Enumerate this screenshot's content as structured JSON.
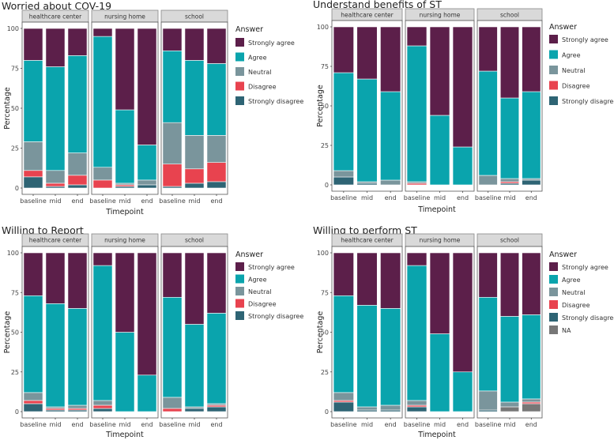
{
  "colors": {
    "Strongly agree": "#5c1f4a",
    "Agree": "#0aa4ad",
    "Neutral": "#7a959c",
    "Disagree": "#e8434f",
    "Strongly disagree": "#2e6474",
    "NA": "#777777"
  },
  "chart_data": [
    {
      "type": "bar",
      "stacked": true,
      "title": "Worried about COV-19",
      "xlabel": "Timepoint",
      "ylabel": "Percentage",
      "ylim": [
        0,
        100
      ],
      "yticks": [
        0,
        25,
        50,
        75,
        100
      ],
      "legend_title": "Answer",
      "legend": [
        "Strongly agree",
        "Agree",
        "Neutral",
        "Disagree",
        "Strongly disagree"
      ],
      "facets": [
        {
          "name": "healthcare center",
          "categories": [
            "baseline",
            "mid",
            "end"
          ],
          "series": [
            {
              "name": "Strongly disagree",
              "values": [
                7,
                1,
                2
              ]
            },
            {
              "name": "Disagree",
              "values": [
                4,
                2,
                6
              ]
            },
            {
              "name": "Neutral",
              "values": [
                18,
                8,
                14
              ]
            },
            {
              "name": "Agree",
              "values": [
                51,
                65,
                61
              ]
            },
            {
              "name": "Strongly agree",
              "values": [
                20,
                24,
                17
              ]
            }
          ]
        },
        {
          "name": "nursing home",
          "categories": [
            "baseline",
            "mid",
            "end"
          ],
          "series": [
            {
              "name": "Strongly disagree",
              "values": [
                0,
                1,
                2
              ]
            },
            {
              "name": "Disagree",
              "values": [
                5,
                1,
                0
              ]
            },
            {
              "name": "Neutral",
              "values": [
                8,
                1,
                3
              ]
            },
            {
              "name": "Agree",
              "values": [
                82,
                46,
                22
              ]
            },
            {
              "name": "Strongly agree",
              "values": [
                5,
                51,
                73
              ]
            }
          ]
        },
        {
          "name": "school",
          "categories": [
            "baseline",
            "mid",
            "end"
          ],
          "series": [
            {
              "name": "Strongly disagree",
              "values": [
                1,
                3,
                4
              ]
            },
            {
              "name": "Disagree",
              "values": [
                14,
                9,
                12
              ]
            },
            {
              "name": "Neutral",
              "values": [
                26,
                21,
                17
              ]
            },
            {
              "name": "Agree",
              "values": [
                45,
                47,
                45
              ]
            },
            {
              "name": "Strongly agree",
              "values": [
                14,
                20,
                22
              ]
            }
          ]
        }
      ]
    },
    {
      "type": "bar",
      "stacked": true,
      "title": "Understand benefits of ST",
      "xlabel": "Timepoint",
      "ylabel": "Percentage",
      "ylim": [
        0,
        100
      ],
      "yticks": [
        0,
        25,
        50,
        75,
        100
      ],
      "legend_title": "Answer",
      "legend": [
        "Strongly agree",
        "Agree",
        "Neutral",
        "Disagree",
        "Strongly disagree"
      ],
      "facets": [
        {
          "name": "healthcare center",
          "categories": [
            "baseline",
            "mid",
            "end"
          ],
          "series": [
            {
              "name": "Strongly disagree",
              "values": [
                5,
                1,
                0
              ]
            },
            {
              "name": "Disagree",
              "values": [
                0,
                0,
                0
              ]
            },
            {
              "name": "Neutral",
              "values": [
                4,
                1,
                3
              ]
            },
            {
              "name": "Agree",
              "values": [
                62,
                65,
                56
              ]
            },
            {
              "name": "Strongly agree",
              "values": [
                29,
                33,
                41
              ]
            }
          ]
        },
        {
          "name": "nursing home",
          "categories": [
            "baseline",
            "mid",
            "end"
          ],
          "series": [
            {
              "name": "Strongly disagree",
              "values": [
                0,
                0,
                0
              ]
            },
            {
              "name": "Disagree",
              "values": [
                1,
                0,
                0
              ]
            },
            {
              "name": "Neutral",
              "values": [
                1,
                0,
                0
              ]
            },
            {
              "name": "Agree",
              "values": [
                86,
                44,
                24
              ]
            },
            {
              "name": "Strongly agree",
              "values": [
                12,
                56,
                76
              ]
            }
          ]
        },
        {
          "name": "school",
          "categories": [
            "baseline",
            "mid",
            "end"
          ],
          "series": [
            {
              "name": "Strongly disagree",
              "values": [
                0,
                1,
                3
              ]
            },
            {
              "name": "Disagree",
              "values": [
                0,
                1,
                0
              ]
            },
            {
              "name": "Neutral",
              "values": [
                6,
                2,
                1
              ]
            },
            {
              "name": "Agree",
              "values": [
                66,
                51,
                55
              ]
            },
            {
              "name": "Strongly agree",
              "values": [
                28,
                45,
                41
              ]
            }
          ]
        }
      ]
    },
    {
      "type": "bar",
      "stacked": true,
      "title": "Willing to Report",
      "xlabel": "Timepoint",
      "ylabel": "Percentage",
      "ylim": [
        0,
        100
      ],
      "yticks": [
        0,
        25,
        50,
        75,
        100
      ],
      "legend_title": "Answer",
      "legend": [
        "Strongly agree",
        "Agree",
        "Neutral",
        "Disagree",
        "Strongly disagree"
      ],
      "facets": [
        {
          "name": "healthcare center",
          "categories": [
            "baseline",
            "mid",
            "end"
          ],
          "series": [
            {
              "name": "Strongly disagree",
              "values": [
                5,
                1,
                1
              ]
            },
            {
              "name": "Disagree",
              "values": [
                2,
                1,
                1
              ]
            },
            {
              "name": "Neutral",
              "values": [
                5,
                1,
                2
              ]
            },
            {
              "name": "Agree",
              "values": [
                61,
                65,
                61
              ]
            },
            {
              "name": "Strongly agree",
              "values": [
                27,
                32,
                35
              ]
            }
          ]
        },
        {
          "name": "nursing home",
          "categories": [
            "baseline",
            "mid",
            "end"
          ],
          "series": [
            {
              "name": "Strongly disagree",
              "values": [
                2,
                0,
                0
              ]
            },
            {
              "name": "Disagree",
              "values": [
                2,
                0,
                0
              ]
            },
            {
              "name": "Neutral",
              "values": [
                3,
                0,
                0
              ]
            },
            {
              "name": "Agree",
              "values": [
                85,
                50,
                23
              ]
            },
            {
              "name": "Strongly agree",
              "values": [
                8,
                50,
                77
              ]
            }
          ]
        },
        {
          "name": "school",
          "categories": [
            "baseline",
            "mid",
            "end"
          ],
          "series": [
            {
              "name": "Strongly disagree",
              "values": [
                0,
                2,
                3
              ]
            },
            {
              "name": "Disagree",
              "values": [
                2,
                0,
                1
              ]
            },
            {
              "name": "Neutral",
              "values": [
                7,
                1,
                1
              ]
            },
            {
              "name": "Agree",
              "values": [
                63,
                52,
                57
              ]
            },
            {
              "name": "Strongly agree",
              "values": [
                28,
                45,
                38
              ]
            }
          ]
        }
      ]
    },
    {
      "type": "bar",
      "stacked": true,
      "title": "Willing to perform ST",
      "xlabel": "Timepoint",
      "ylabel": "Percentage",
      "ylim": [
        0,
        100
      ],
      "yticks": [
        0,
        25,
        50,
        75,
        100
      ],
      "legend_title": "Answer",
      "legend": [
        "Strongly agree",
        "Agree",
        "Neutral",
        "Disagree",
        "Strongly disagree",
        "NA"
      ],
      "facets": [
        {
          "name": "healthcare center",
          "categories": [
            "baseline",
            "mid",
            "end"
          ],
          "series": [
            {
              "name": "NA",
              "values": [
                0,
                0,
                0
              ]
            },
            {
              "name": "Strongly disagree",
              "values": [
                6,
                1,
                1
              ]
            },
            {
              "name": "Disagree",
              "values": [
                1,
                0,
                0
              ]
            },
            {
              "name": "Neutral",
              "values": [
                5,
                2,
                3
              ]
            },
            {
              "name": "Agree",
              "values": [
                61,
                64,
                61
              ]
            },
            {
              "name": "Strongly agree",
              "values": [
                27,
                33,
                35
              ]
            }
          ]
        },
        {
          "name": "nursing home",
          "categories": [
            "baseline",
            "mid",
            "end"
          ],
          "series": [
            {
              "name": "NA",
              "values": [
                0,
                0,
                0
              ]
            },
            {
              "name": "Strongly disagree",
              "values": [
                3,
                0,
                0
              ]
            },
            {
              "name": "Disagree",
              "values": [
                1,
                0,
                0
              ]
            },
            {
              "name": "Neutral",
              "values": [
                3,
                0,
                0
              ]
            },
            {
              "name": "Agree",
              "values": [
                85,
                49,
                25
              ]
            },
            {
              "name": "Strongly agree",
              "values": [
                8,
                51,
                75
              ]
            }
          ]
        },
        {
          "name": "school",
          "categories": [
            "baseline",
            "mid",
            "end"
          ],
          "series": [
            {
              "name": "NA",
              "values": [
                0,
                3,
                5
              ]
            },
            {
              "name": "Strongly disagree",
              "values": [
                1,
                0,
                0
              ]
            },
            {
              "name": "Disagree",
              "values": [
                0,
                0,
                1
              ]
            },
            {
              "name": "Neutral",
              "values": [
                12,
                3,
                2
              ]
            },
            {
              "name": "Agree",
              "values": [
                59,
                54,
                53
              ]
            },
            {
              "name": "Strongly agree",
              "values": [
                28,
                40,
                39
              ]
            }
          ]
        }
      ]
    }
  ]
}
